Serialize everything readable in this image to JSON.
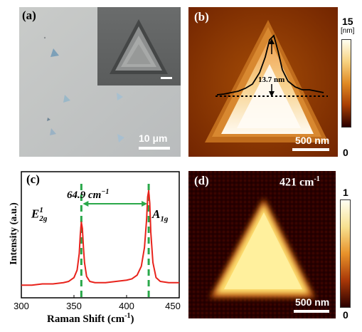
{
  "panels": {
    "a": {
      "label": "(a)",
      "scale": "10 μm"
    },
    "b": {
      "label": "(b)",
      "scale": "500 nm",
      "profile_annotation": "13.7 nm",
      "colorbar_max": "15",
      "colorbar_unit": "[nm]",
      "colorbar_min": "0"
    },
    "c": {
      "label": "(c)",
      "peak_separation": "64.9 cm",
      "peak_separation_sup": "−1",
      "peak_left_main": "E",
      "peak_left_sup": "1",
      "peak_left_sub": "2g",
      "peak_right_main": "A",
      "peak_right_sub": "1g"
    },
    "d": {
      "label": "(d)",
      "mode": "421 cm",
      "mode_sup": "-1",
      "scale": "500 nm",
      "colorbar_max": "1",
      "colorbar_min": "0"
    }
  },
  "chart_data": {
    "type": "line",
    "xlabel": "Raman Shift (cm",
    "xlabel_sup": "-1",
    "xlabel_close": ")",
    "ylabel": "Intensity (a.u.)",
    "xlim": [
      300,
      450
    ],
    "xticks": [
      "300",
      "350",
      "400",
      "450"
    ],
    "series": [
      {
        "color": "#e8231c",
        "x": [
          300,
          310,
          320,
          330,
          340,
          345,
          350,
          353,
          355,
          356,
          357,
          358,
          359,
          360,
          362,
          365,
          370,
          380,
          390,
          400,
          405,
          410,
          414,
          417,
          419,
          420,
          421,
          422,
          423,
          425,
          428,
          432,
          440,
          450
        ],
        "y": [
          0.1,
          0.1,
          0.11,
          0.11,
          0.12,
          0.13,
          0.16,
          0.22,
          0.35,
          0.5,
          0.6,
          0.55,
          0.4,
          0.28,
          0.17,
          0.13,
          0.12,
          0.12,
          0.13,
          0.14,
          0.15,
          0.18,
          0.25,
          0.4,
          0.62,
          0.8,
          0.85,
          0.75,
          0.52,
          0.28,
          0.16,
          0.13,
          0.12,
          0.12
        ]
      }
    ],
    "guide_lines_x": [
      357,
      421
    ],
    "guide_color": "#2aa84a"
  }
}
